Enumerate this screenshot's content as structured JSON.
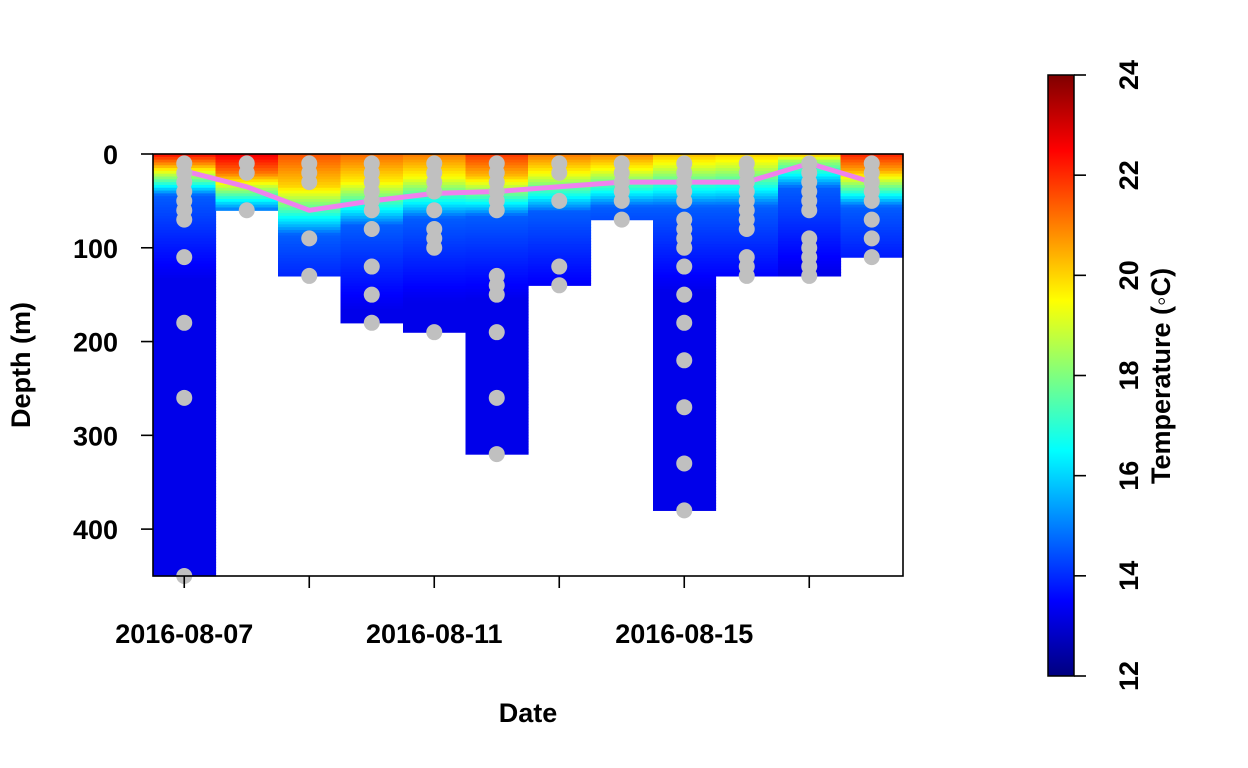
{
  "chart_data": {
    "type": "heatmap",
    "xlabel": "Date",
    "ylabel": "Depth (m)",
    "ylim": [
      450,
      0
    ],
    "x_tick_labels": [
      "2016-08-07",
      "2016-08-11",
      "2016-08-15"
    ],
    "y_ticks": [
      0,
      100,
      200,
      300,
      400
    ],
    "colorbar": {
      "label": "Temperature (◦C)",
      "range": [
        12,
        24
      ],
      "ticks": [
        12,
        14,
        16,
        18,
        20,
        22,
        24
      ],
      "colors": [
        "#00007f",
        "#0000ff",
        "#007fff",
        "#00ffff",
        "#7fff7f",
        "#ffff00",
        "#ff7f00",
        "#ff0000",
        "#7f0000"
      ]
    },
    "profiles": [
      {
        "date": "2016-08-07",
        "surface_temp": 22.2,
        "max_depth": 450,
        "depths": [
          10,
          20,
          30,
          40,
          50,
          60,
          70,
          110,
          180,
          260,
          450
        ]
      },
      {
        "date": "2016-08-08",
        "surface_temp": 22.6,
        "max_depth": 60,
        "depths": [
          10,
          20,
          60
        ]
      },
      {
        "date": "2016-08-09",
        "surface_temp": 21.5,
        "max_depth": 130,
        "depths": [
          10,
          20,
          30,
          90,
          130
        ]
      },
      {
        "date": "2016-08-10",
        "surface_temp": 21.2,
        "max_depth": 180,
        "depths": [
          10,
          20,
          30,
          40,
          50,
          60,
          80,
          120,
          150,
          180
        ]
      },
      {
        "date": "2016-08-11",
        "surface_temp": 21.0,
        "max_depth": 190,
        "depths": [
          10,
          20,
          30,
          40,
          60,
          80,
          90,
          100,
          190
        ]
      },
      {
        "date": "2016-08-12",
        "surface_temp": 21.8,
        "max_depth": 320,
        "depths": [
          10,
          20,
          30,
          40,
          50,
          60,
          130,
          140,
          150,
          190,
          260,
          320
        ]
      },
      {
        "date": "2016-08-13",
        "surface_temp": 21.0,
        "max_depth": 140,
        "depths": [
          10,
          20,
          50,
          120,
          140
        ]
      },
      {
        "date": "2016-08-14",
        "surface_temp": 20.8,
        "max_depth": 70,
        "depths": [
          10,
          20,
          30,
          40,
          50,
          70
        ]
      },
      {
        "date": "2016-08-15",
        "surface_temp": 20.2,
        "max_depth": 380,
        "depths": [
          10,
          20,
          30,
          40,
          50,
          70,
          80,
          90,
          100,
          120,
          150,
          180,
          220,
          270,
          330,
          380
        ]
      },
      {
        "date": "2016-08-16",
        "surface_temp": 20.0,
        "max_depth": 130,
        "depths": [
          10,
          20,
          30,
          40,
          50,
          60,
          70,
          80,
          110,
          120,
          130
        ]
      },
      {
        "date": "2016-08-17",
        "surface_temp": 20.0,
        "max_depth": 130,
        "depths": [
          10,
          20,
          30,
          40,
          50,
          60,
          90,
          100,
          110,
          120,
          130
        ]
      },
      {
        "date": "2016-08-18",
        "surface_temp": 22.0,
        "max_depth": 110,
        "depths": [
          10,
          20,
          30,
          40,
          50,
          70,
          90,
          110
        ]
      }
    ],
    "thermocline_line": {
      "color": "#ee82ee",
      "depths": [
        18,
        35,
        60,
        50,
        42,
        40,
        35,
        30,
        30,
        30,
        10,
        30
      ]
    },
    "sample_point_color": "#c0c0c0"
  }
}
